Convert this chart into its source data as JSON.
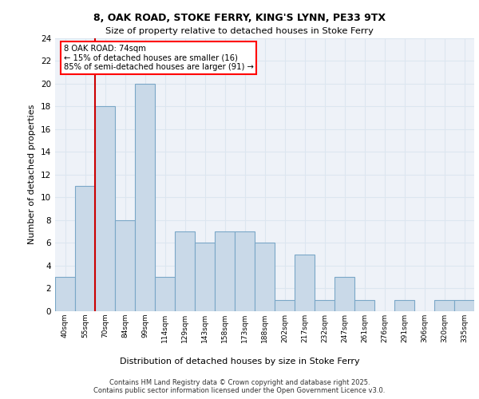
{
  "title1": "8, OAK ROAD, STOKE FERRY, KING'S LYNN, PE33 9TX",
  "title2": "Size of property relative to detached houses in Stoke Ferry",
  "xlabel": "Distribution of detached houses by size in Stoke Ferry",
  "ylabel": "Number of detached properties",
  "categories": [
    "40sqm",
    "55sqm",
    "70sqm",
    "84sqm",
    "99sqm",
    "114sqm",
    "129sqm",
    "143sqm",
    "158sqm",
    "173sqm",
    "188sqm",
    "202sqm",
    "217sqm",
    "232sqm",
    "247sqm",
    "261sqm",
    "276sqm",
    "291sqm",
    "306sqm",
    "320sqm",
    "335sqm"
  ],
  "values": [
    3,
    11,
    18,
    8,
    20,
    3,
    7,
    6,
    7,
    7,
    6,
    1,
    5,
    1,
    3,
    1,
    0,
    1,
    0,
    1,
    1
  ],
  "bar_color": "#c9d9e8",
  "bar_edge_color": "#7aa7c7",
  "red_line_x": 1.5,
  "annotation_text": "8 OAK ROAD: 74sqm\n← 15% of detached houses are smaller (16)\n85% of semi-detached houses are larger (91) →",
  "annotation_box_color": "white",
  "annotation_box_edge": "red",
  "ylim": [
    0,
    24
  ],
  "yticks": [
    0,
    2,
    4,
    6,
    8,
    10,
    12,
    14,
    16,
    18,
    20,
    22,
    24
  ],
  "grid_color": "#dce6f0",
  "background_color": "#eef2f8",
  "footer_text": "Contains HM Land Registry data © Crown copyright and database right 2025.\nContains public sector information licensed under the Open Government Licence v3.0.",
  "red_line_color": "#cc0000"
}
